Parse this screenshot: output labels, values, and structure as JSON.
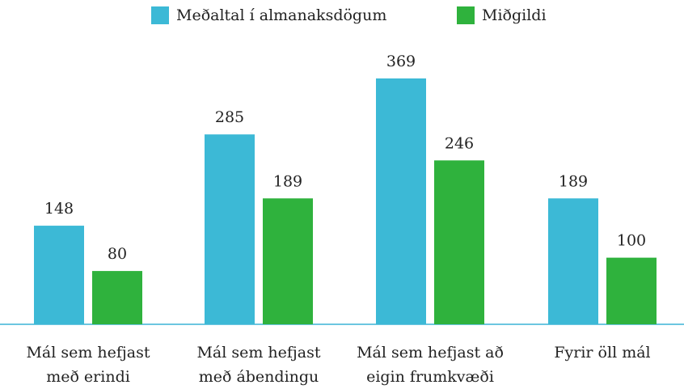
{
  "chart_data": {
    "type": "bar",
    "categories": [
      "Mál sem hefjast\nmeð erindi",
      "Mál sem hefjast\nmeð ábendingu",
      "Mál sem hefjast að\neigin frumkvæði",
      "Fyrir öll mál"
    ],
    "series": [
      {
        "name": "Meðaltal í almanaksdögum",
        "color": "#3cb9d6",
        "values": [
          148,
          285,
          369,
          189
        ]
      },
      {
        "name": "Miðgildi",
        "color": "#2fb23d",
        "values": [
          80,
          189,
          246,
          100
        ]
      }
    ],
    "legend": "top"
  }
}
